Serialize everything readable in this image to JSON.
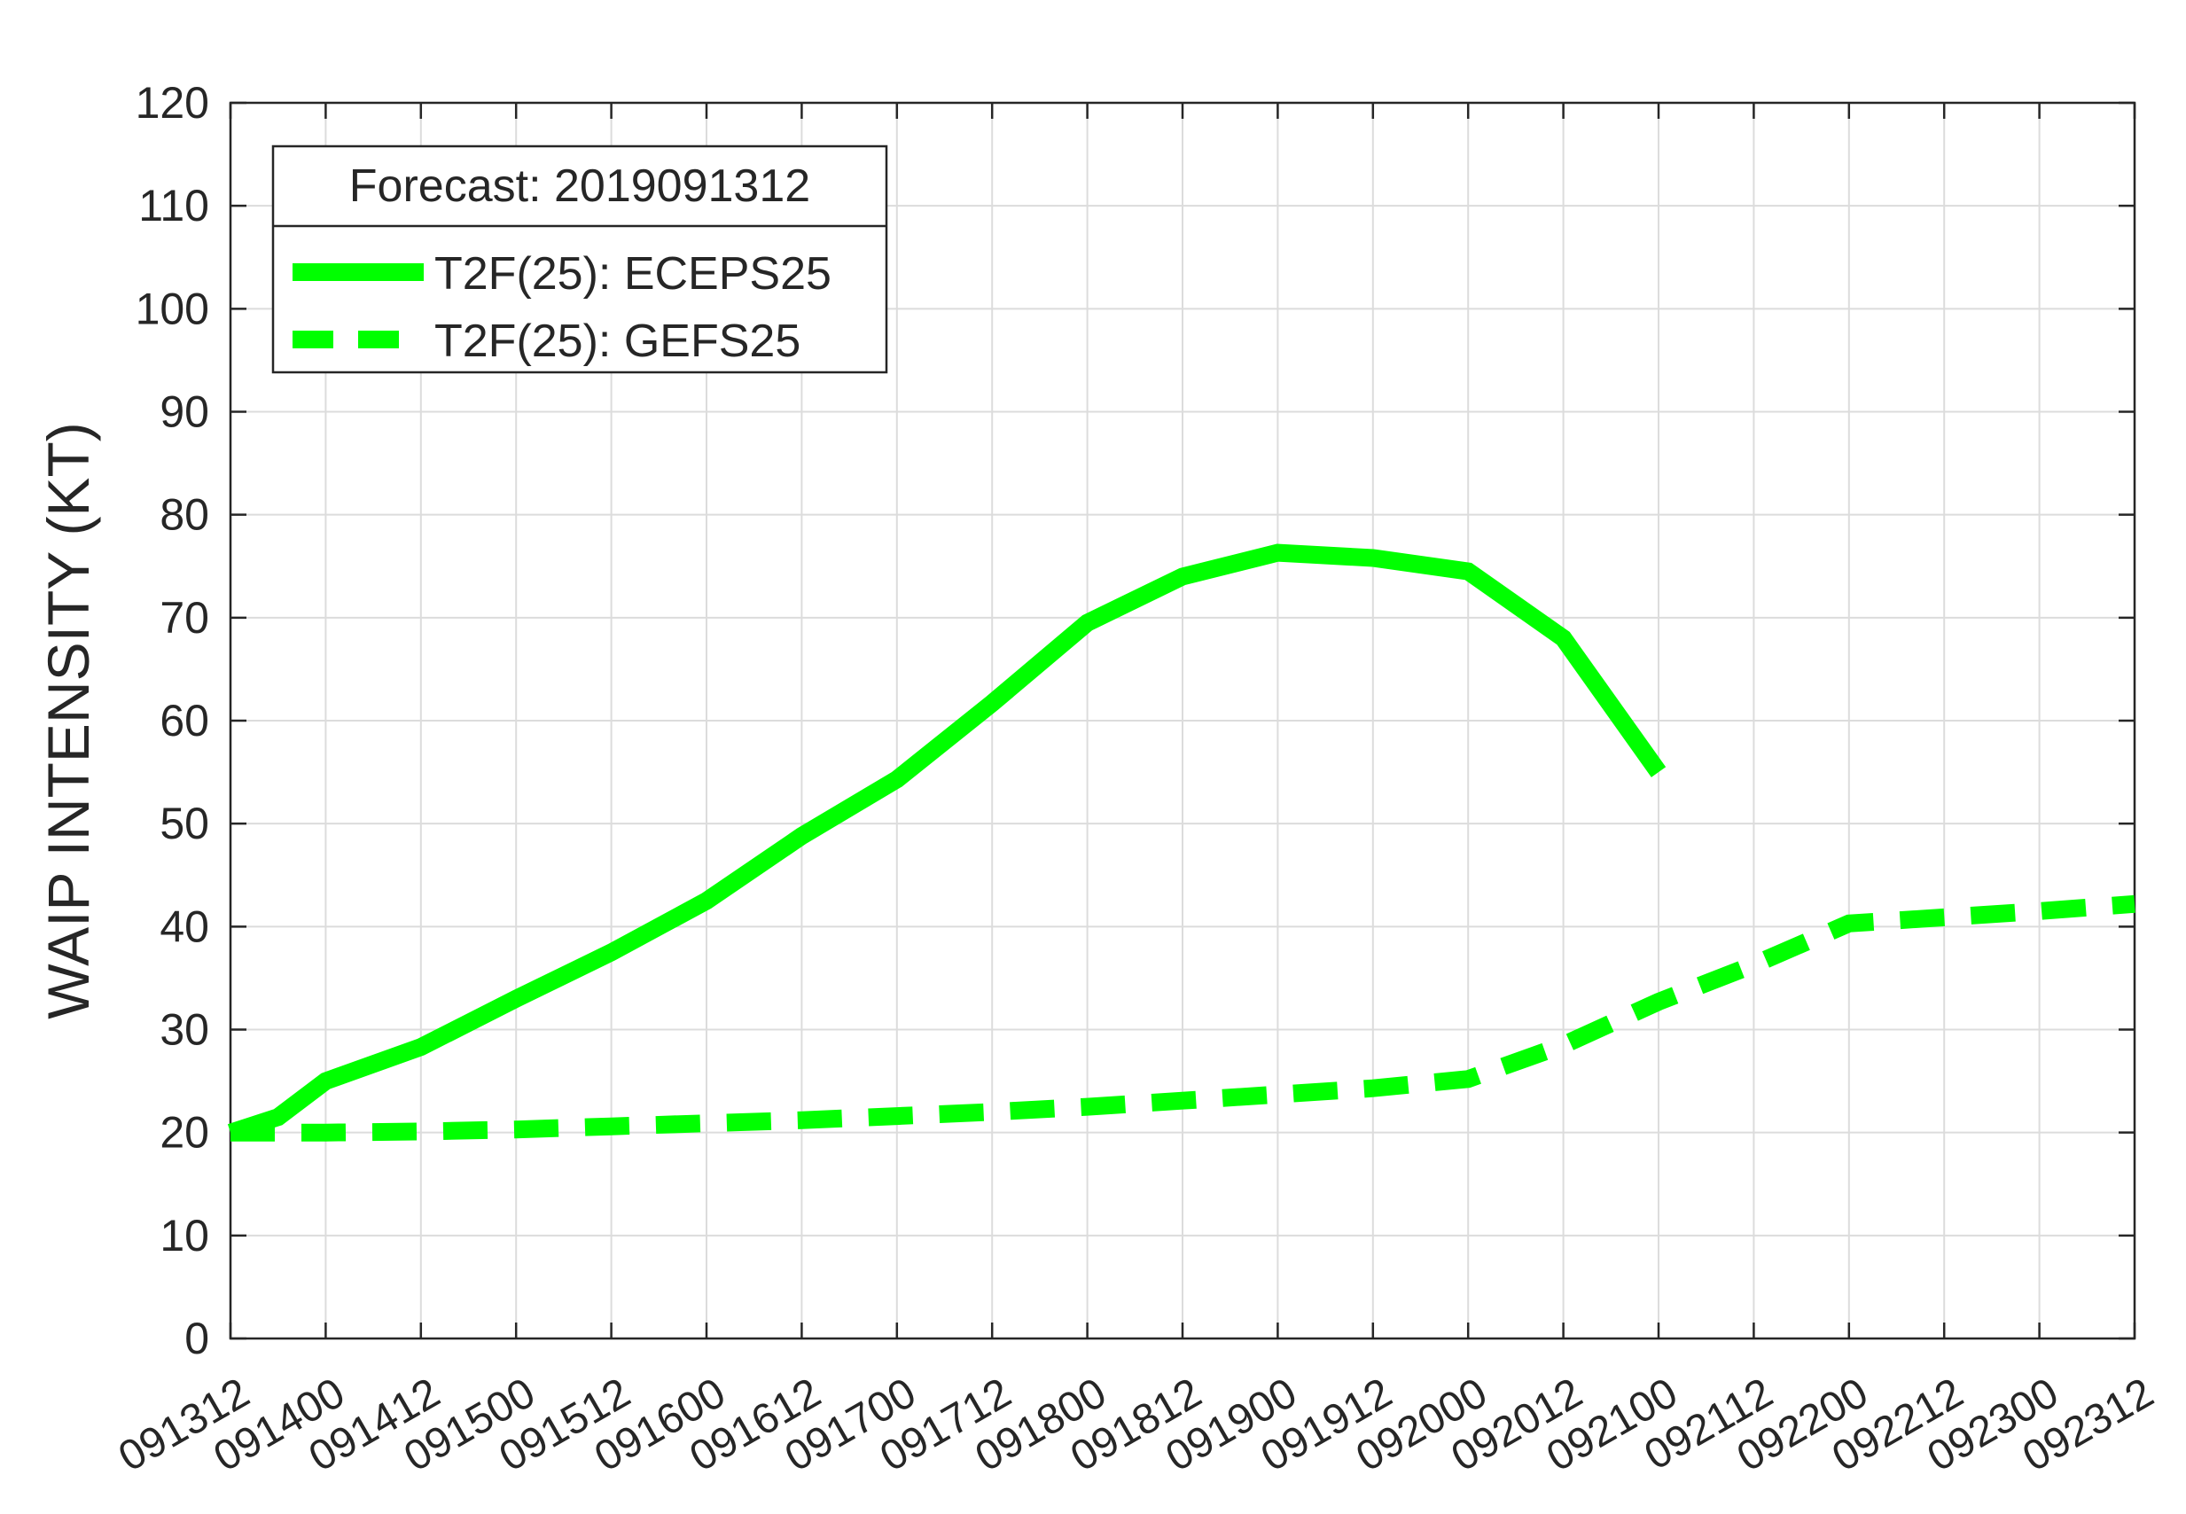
{
  "chart_data": {
    "type": "line",
    "title": "",
    "xlabel": "",
    "ylabel": "WAIP INTENSITY (KT)",
    "ylim": [
      0,
      120
    ],
    "yticks": [
      0,
      10,
      20,
      30,
      40,
      50,
      60,
      70,
      80,
      90,
      100,
      110,
      120
    ],
    "xtick_labels": [
      "091312",
      "091400",
      "091412",
      "091500",
      "091512",
      "091600",
      "091612",
      "091700",
      "091712",
      "091800",
      "091812",
      "091900",
      "091912",
      "092000",
      "092012",
      "092100",
      "092112",
      "092200",
      "092212",
      "092300",
      "092312"
    ],
    "x_unit": "hours since 091312",
    "xlim": [
      0,
      240
    ],
    "grid": true,
    "legend": {
      "position": "top-left",
      "title": "Forecast: 2019091312"
    },
    "series": [
      {
        "name": "T2F(25): ECEPS25",
        "style": "solid",
        "color": "#00ff00",
        "points": [
          [
            0,
            20
          ],
          [
            6,
            21.5
          ],
          [
            12,
            25
          ],
          [
            24,
            28.3
          ],
          [
            36,
            33
          ],
          [
            48,
            37.5
          ],
          [
            60,
            42.5
          ],
          [
            72,
            48.8
          ],
          [
            84,
            54.3
          ],
          [
            96,
            61.7
          ],
          [
            108,
            69.5
          ],
          [
            120,
            74
          ],
          [
            132,
            76.3
          ],
          [
            144,
            75.8
          ],
          [
            156,
            74.5
          ],
          [
            168,
            68
          ],
          [
            180,
            55
          ]
        ]
      },
      {
        "name": "T2F(25): GEFS25",
        "style": "dashed",
        "color": "#00ff00",
        "points": [
          [
            0,
            20
          ],
          [
            6,
            20
          ],
          [
            12,
            20
          ],
          [
            24,
            20.1
          ],
          [
            36,
            20.3
          ],
          [
            48,
            20.6
          ],
          [
            60,
            20.9
          ],
          [
            72,
            21.2
          ],
          [
            84,
            21.6
          ],
          [
            96,
            22
          ],
          [
            108,
            22.5
          ],
          [
            120,
            23.1
          ],
          [
            132,
            23.7
          ],
          [
            144,
            24.3
          ],
          [
            156,
            25.2
          ],
          [
            168,
            28.5
          ],
          [
            180,
            32.7
          ],
          [
            192,
            36.3
          ],
          [
            204,
            40.3
          ],
          [
            216,
            40.9
          ],
          [
            228,
            41.5
          ],
          [
            240,
            42.2
          ]
        ]
      }
    ]
  }
}
